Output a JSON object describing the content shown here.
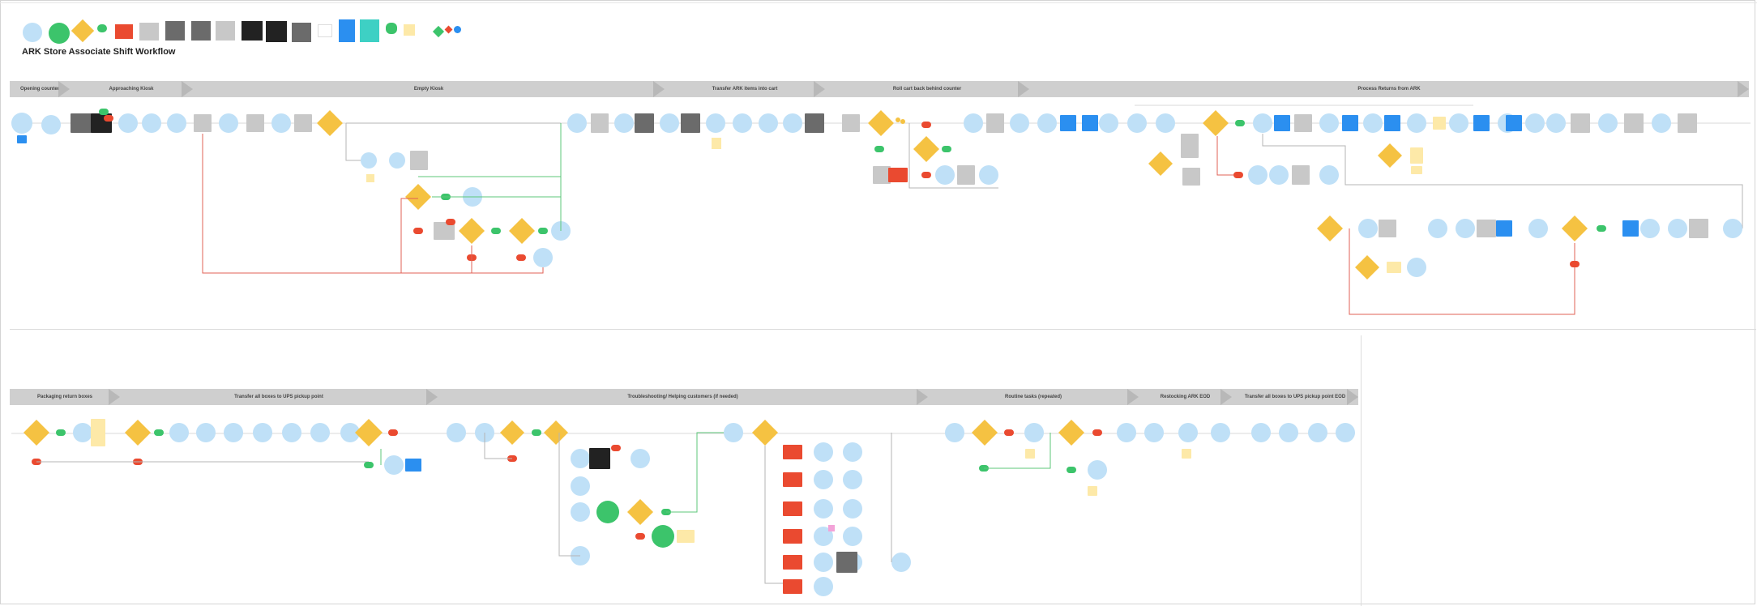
{
  "diagram": {
    "title": "ARK Store Associate Shift Workflow",
    "stages_top": [
      {
        "label": "Opening counter"
      },
      {
        "label": "Approaching Kiosk"
      },
      {
        "label": "Empty Kiosk"
      },
      {
        "label": "Transfer ARK items into cart"
      },
      {
        "label": "Roll cart back behind counter"
      },
      {
        "label": "Process Returns from ARK"
      }
    ],
    "stages_bottom": [
      {
        "label": "Packaging return boxes"
      },
      {
        "label": "Transfer all boxes to UPS pickup point"
      },
      {
        "label": "Troubleshooting/ Helping customers (if needed)"
      },
      {
        "label": "Routine tasks (repeated)"
      },
      {
        "label": "Restocking ARK EOD"
      },
      {
        "label": "Transfer all boxes to UPS pickup point EOD"
      }
    ],
    "colors": {
      "step": "#bfe0f7",
      "decision": "#f5c242",
      "yes": "#3cc46b",
      "no": "#ea4a30",
      "system": "#6b6b6b",
      "system_dark": "#222222",
      "system_light": "#c8c8c8",
      "screen": "#2b8ff0",
      "screen_alt": "#3ed0c4",
      "note": "#fde9a8",
      "stage": "#cfcfcf",
      "loop_line": "#e06055",
      "yes_line": "#5cc77a",
      "flow_line": "#b5b5b5"
    },
    "legend": [
      {
        "shape": "circle",
        "color": "step"
      },
      {
        "shape": "circle",
        "color": "yes"
      },
      {
        "shape": "diamond",
        "color": "decision"
      },
      {
        "shape": "pill",
        "color": "yes"
      },
      {
        "shape": "rect",
        "color": "no"
      },
      {
        "shape": "rect",
        "color": "system_light"
      },
      {
        "shape": "rect",
        "color": "system"
      },
      {
        "shape": "rect",
        "color": "system"
      },
      {
        "shape": "rect",
        "color": "system_light"
      },
      {
        "shape": "rect",
        "color": "system_dark"
      },
      {
        "shape": "rect",
        "color": "system_dark"
      },
      {
        "shape": "rect",
        "color": "system"
      },
      {
        "shape": "rect",
        "color": "white"
      },
      {
        "shape": "rect",
        "color": "screen"
      },
      {
        "shape": "rect",
        "color": "screen_alt"
      },
      {
        "shape": "pill",
        "color": "yes"
      },
      {
        "shape": "rect",
        "color": "note"
      },
      {
        "shape": "diamond",
        "color": "yes"
      }
    ],
    "icons": [
      "info-icon"
    ]
  }
}
